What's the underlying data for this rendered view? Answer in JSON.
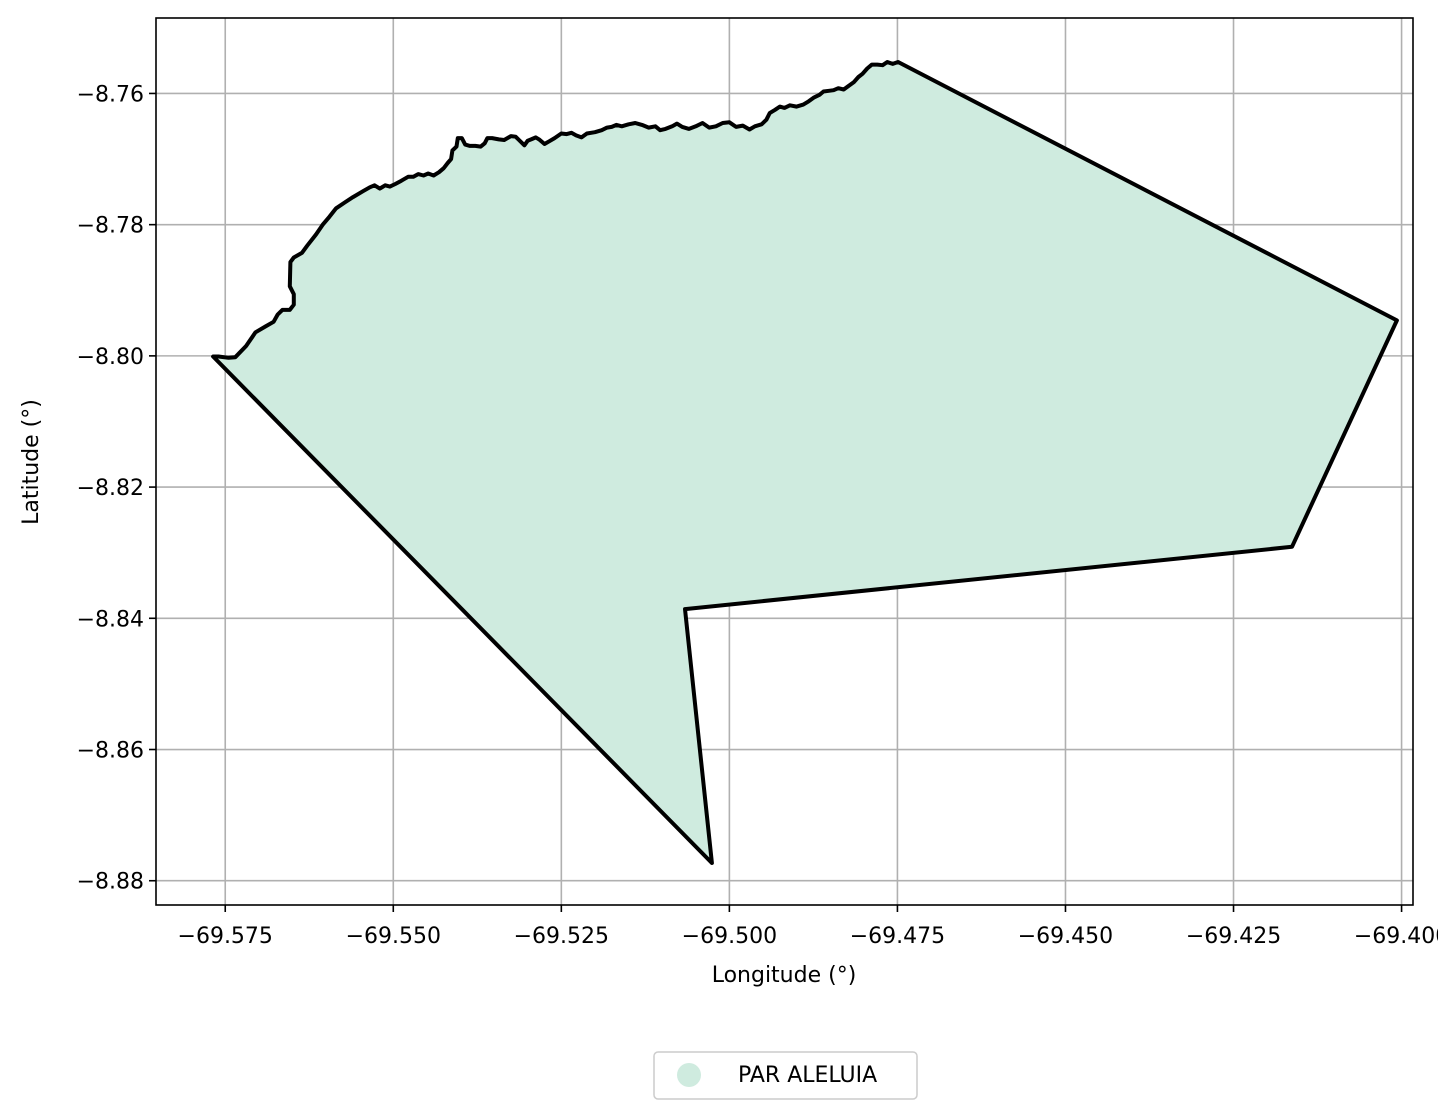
{
  "chart_data": {
    "type": "area",
    "xlabel": "Longitude (°)",
    "ylabel": "Latitude (°)",
    "xlim": [
      -69.5853,
      -69.3983
    ],
    "ylim": [
      -8.8837,
      -8.7485
    ],
    "grid": true,
    "x_ticks": [
      -69.575,
      -69.55,
      -69.525,
      -69.5,
      -69.475,
      -69.45,
      -69.425,
      -69.4
    ],
    "x_tick_labels": [
      "−69.575",
      "−69.550",
      "−69.525",
      "−69.500",
      "−69.475",
      "−69.450",
      "−69.425",
      "−69.400"
    ],
    "y_ticks": [
      -8.76,
      -8.78,
      -8.8,
      -8.82,
      -8.84,
      -8.86,
      -8.88
    ],
    "y_tick_labels": [
      "−8.76",
      "−8.78",
      "−8.80",
      "−8.82",
      "−8.84",
      "−8.86",
      "−8.88"
    ],
    "legend": {
      "placement": "bottom-center",
      "entries": [
        {
          "label": "PAR ALELUIA",
          "color": "#cfebdf"
        }
      ]
    },
    "series": [
      {
        "name": "PAR ALELUIA",
        "fill": "#cfebdf",
        "stroke": "#000000",
        "points": [
          [
            -69.5768,
            -8.8001
          ],
          [
            -69.576,
            -8.8001
          ],
          [
            -69.5745,
            -8.8003
          ],
          [
            -69.5735,
            -8.8002
          ],
          [
            -69.5719,
            -8.7985
          ],
          [
            -69.5705,
            -8.7964
          ],
          [
            -69.569,
            -8.7955
          ],
          [
            -69.5678,
            -8.7948
          ],
          [
            -69.5672,
            -8.7937
          ],
          [
            -69.5665,
            -8.793
          ],
          [
            -69.5654,
            -8.793
          ],
          [
            -69.5648,
            -8.7922
          ],
          [
            -69.5648,
            -8.7906
          ],
          [
            -69.5654,
            -8.7894
          ],
          [
            -69.5653,
            -8.7857
          ],
          [
            -69.5648,
            -8.785
          ],
          [
            -69.5636,
            -8.7843
          ],
          [
            -69.5628,
            -8.7832
          ],
          [
            -69.5615,
            -8.7815
          ],
          [
            -69.5605,
            -8.78
          ],
          [
            -69.5595,
            -8.7788
          ],
          [
            -69.5585,
            -8.7775
          ],
          [
            -69.5572,
            -8.7766
          ],
          [
            -69.556,
            -8.7758
          ],
          [
            -69.5545,
            -8.7749
          ],
          [
            -69.5535,
            -8.7743
          ],
          [
            -69.5528,
            -8.774
          ],
          [
            -69.552,
            -8.7745
          ],
          [
            -69.5512,
            -8.774
          ],
          [
            -69.5505,
            -8.7742
          ],
          [
            -69.5497,
            -8.7738
          ],
          [
            -69.5488,
            -8.7733
          ],
          [
            -69.5478,
            -8.7727
          ],
          [
            -69.547,
            -8.7727
          ],
          [
            -69.5463,
            -8.7723
          ],
          [
            -69.5455,
            -8.7725
          ],
          [
            -69.5448,
            -8.7722
          ],
          [
            -69.544,
            -8.7725
          ],
          [
            -69.5432,
            -8.772
          ],
          [
            -69.5425,
            -8.7714
          ],
          [
            -69.5419,
            -8.7706
          ],
          [
            -69.5414,
            -8.77
          ],
          [
            -69.5412,
            -8.7687
          ],
          [
            -69.5406,
            -8.7681
          ],
          [
            -69.5404,
            -8.7668
          ],
          [
            -69.5398,
            -8.7668
          ],
          [
            -69.5393,
            -8.7678
          ],
          [
            -69.5386,
            -8.768
          ],
          [
            -69.5378,
            -8.768
          ],
          [
            -69.537,
            -8.7681
          ],
          [
            -69.5364,
            -8.7676
          ],
          [
            -69.536,
            -8.7668
          ],
          [
            -69.5353,
            -8.7668
          ],
          [
            -69.5343,
            -8.767
          ],
          [
            -69.5335,
            -8.7671
          ],
          [
            -69.5325,
            -8.7665
          ],
          [
            -69.5318,
            -8.7666
          ],
          [
            -69.5313,
            -8.7671
          ],
          [
            -69.5305,
            -8.7679
          ],
          [
            -69.53,
            -8.7672
          ],
          [
            -69.5295,
            -8.767
          ],
          [
            -69.5288,
            -8.7667
          ],
          [
            -69.5283,
            -8.767
          ],
          [
            -69.5275,
            -8.7677
          ],
          [
            -69.5268,
            -8.7673
          ],
          [
            -69.526,
            -8.7668
          ],
          [
            -69.525,
            -8.7661
          ],
          [
            -69.5242,
            -8.7662
          ],
          [
            -69.5235,
            -8.766
          ],
          [
            -69.5228,
            -8.7664
          ],
          [
            -69.522,
            -8.7667
          ],
          [
            -69.5212,
            -8.7661
          ],
          [
            -69.52,
            -8.7659
          ],
          [
            -69.519,
            -8.7656
          ],
          [
            -69.5182,
            -8.7652
          ],
          [
            -69.5175,
            -8.7651
          ],
          [
            -69.5168,
            -8.7648
          ],
          [
            -69.516,
            -8.765
          ],
          [
            -69.515,
            -8.7647
          ],
          [
            -69.514,
            -8.7645
          ],
          [
            -69.513,
            -8.7648
          ],
          [
            -69.512,
            -8.7652
          ],
          [
            -69.511,
            -8.765
          ],
          [
            -69.5103,
            -8.7656
          ],
          [
            -69.5095,
            -8.7654
          ],
          [
            -69.5085,
            -8.765
          ],
          [
            -69.5078,
            -8.7646
          ],
          [
            -69.507,
            -8.7651
          ],
          [
            -69.506,
            -8.7654
          ],
          [
            -69.505,
            -8.765
          ],
          [
            -69.504,
            -8.7645
          ],
          [
            -69.503,
            -8.7652
          ],
          [
            -69.502,
            -8.765
          ],
          [
            -69.501,
            -8.7645
          ],
          [
            -69.5,
            -8.7644
          ],
          [
            -69.499,
            -8.7651
          ],
          [
            -69.498,
            -8.7649
          ],
          [
            -69.497,
            -8.7655
          ],
          [
            -69.4962,
            -8.765
          ],
          [
            -69.4952,
            -8.7647
          ],
          [
            -69.4945,
            -8.764
          ],
          [
            -69.494,
            -8.763
          ],
          [
            -69.4932,
            -8.7625
          ],
          [
            -69.4925,
            -8.762
          ],
          [
            -69.4918,
            -8.7622
          ],
          [
            -69.491,
            -8.7618
          ],
          [
            -69.49,
            -8.762
          ],
          [
            -69.489,
            -8.7617
          ],
          [
            -69.4882,
            -8.7612
          ],
          [
            -69.4874,
            -8.7606
          ],
          [
            -69.4866,
            -8.7602
          ],
          [
            -69.486,
            -8.7597
          ],
          [
            -69.4852,
            -8.7596
          ],
          [
            -69.4845,
            -8.7595
          ],
          [
            -69.4838,
            -8.7592
          ],
          [
            -69.483,
            -8.7594
          ],
          [
            -69.4822,
            -8.7588
          ],
          [
            -69.4815,
            -8.7583
          ],
          [
            -69.4808,
            -8.7575
          ],
          [
            -69.4802,
            -8.757
          ],
          [
            -69.4795,
            -8.7562
          ],
          [
            -69.4788,
            -8.7556
          ],
          [
            -69.478,
            -8.7556
          ],
          [
            -69.4772,
            -8.7557
          ],
          [
            -69.4765,
            -8.7552
          ],
          [
            -69.4757,
            -8.7555
          ],
          [
            -69.4749,
            -8.7552
          ],
          [
            -69.4007,
            -8.7946
          ],
          [
            -69.4163,
            -8.8291
          ],
          [
            -69.5066,
            -8.8386
          ],
          [
            -69.5026,
            -8.8773
          ],
          [
            -69.5768,
            -8.8001
          ]
        ]
      }
    ]
  }
}
